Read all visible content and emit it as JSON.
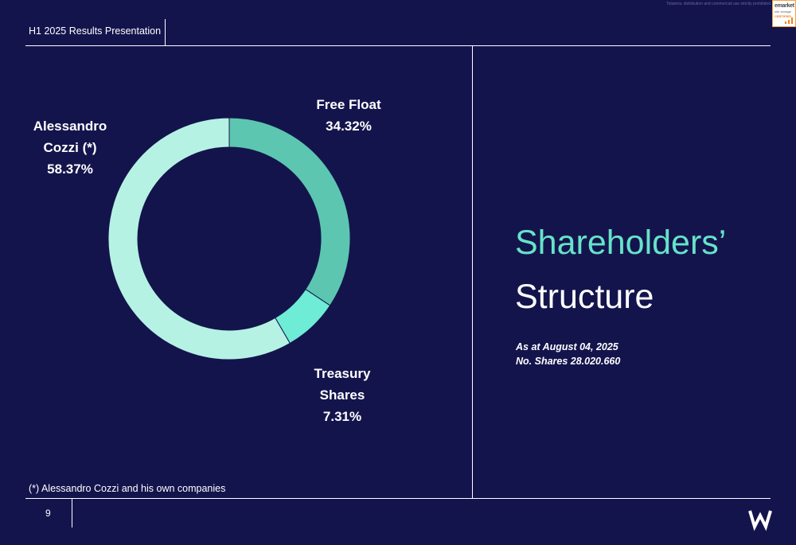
{
  "disclaimer": "Totaloria: distribution and commercial use strictly prohibited",
  "badge": {
    "line1": "emarket",
    "line2": "sdir storage",
    "line3": "CERTIFIED"
  },
  "header": {
    "title": "H1 2025 Results Presentation"
  },
  "footer": {
    "page_number": "9",
    "footnote": "(*) Alessandro Cozzi and his own companies",
    "logo_icon": "w-logo-icon"
  },
  "colors": {
    "background": "#14144d",
    "accent": "#66e3c8"
  },
  "slide": {
    "title_line1": "Shareholders’",
    "title_line2": "Structure",
    "as_at": "As at August 04, 2025",
    "shares": "No. Shares 28.020.660"
  },
  "chart_data": {
    "type": "pie",
    "donut": true,
    "slices": [
      {
        "name_lines": [
          "Free Float"
        ],
        "value_label": "34.32%",
        "value": 34.32,
        "color": "#5cc6b0"
      },
      {
        "name_lines": [
          "Treasury",
          "Shares"
        ],
        "value_label": "7.31%",
        "value": 7.31,
        "color": "#6eecd5"
      },
      {
        "name_lines": [
          "Alessandro",
          "Cozzi (*)"
        ],
        "value_label": "58.37%",
        "value": 58.37,
        "color": "#b6f2e3"
      }
    ]
  }
}
